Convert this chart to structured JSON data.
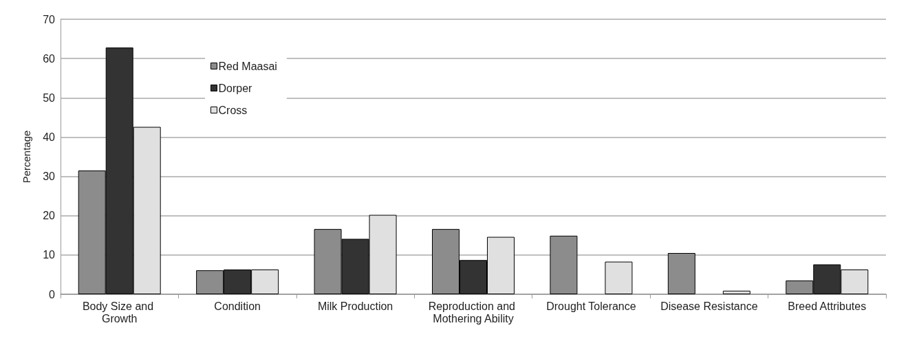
{
  "chart_data": {
    "type": "bar",
    "ylabel": "Percentage",
    "categories": [
      "Body Size and Growth",
      "Condition",
      "Milk Production",
      "Reproduction and Mothering Ability",
      "Drought Tolerance",
      "Disease Resistance",
      "Breed Attributes"
    ],
    "series": [
      {
        "name": "Red Maasai",
        "color": "#8c8c8c",
        "values": [
          31.5,
          6.1,
          16.6,
          16.6,
          14.9,
          10.5,
          3.5
        ]
      },
      {
        "name": "Dorper",
        "color": "#333333",
        "values": [
          62.8,
          6.3,
          14.1,
          8.7,
          null,
          null,
          7.6
        ]
      },
      {
        "name": "Cross",
        "color": "#e0e0e0",
        "values": [
          42.6,
          6.3,
          20.2,
          14.6,
          8.3,
          0.9,
          6.3
        ]
      }
    ],
    "ylim": [
      0,
      70
    ],
    "yticks": [
      0,
      10,
      20,
      30,
      40,
      50,
      60,
      70
    ],
    "grid": "y",
    "legend": "top left"
  }
}
